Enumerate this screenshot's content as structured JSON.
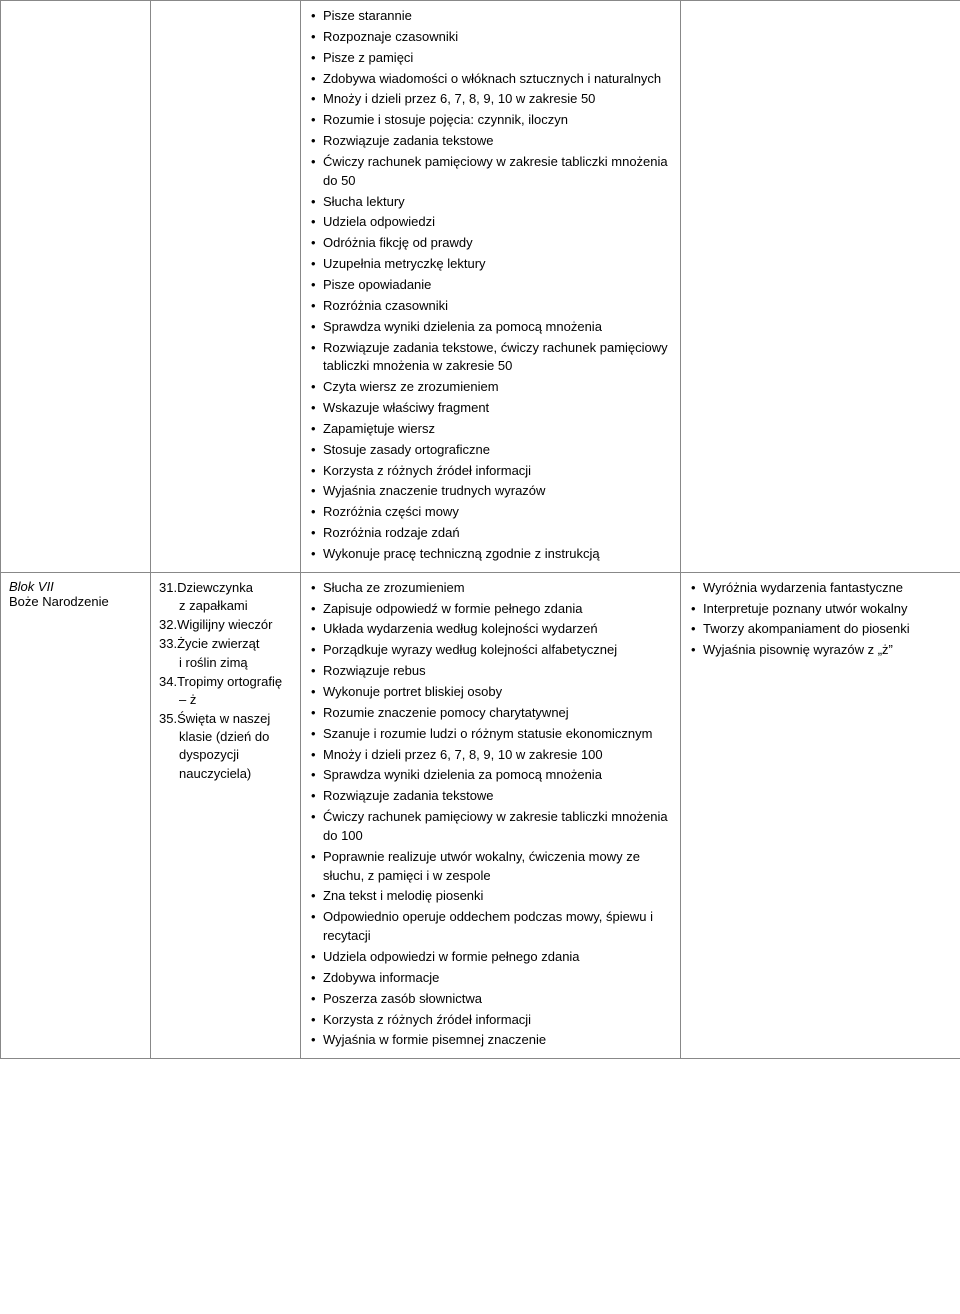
{
  "rows": [
    {
      "col1_lines": [],
      "col2_topics": [],
      "col3_bullets": [
        "Pisze starannie",
        "Rozpoznaje czasowniki",
        "Pisze z pamięci",
        "Zdobywa wiadomości o włóknach sztucznych i naturalnych",
        "Mnoży i dzieli przez 6, 7, 8, 9, 10 w zakresie 50",
        "Rozumie i stosuje pojęcia: czynnik, iloczyn",
        "Rozwiązuje zadania tekstowe",
        "Ćwiczy rachunek pamięciowy w zakresie tabliczki mnożenia do 50",
        "Słucha lektury",
        "Udziela odpowiedzi",
        "Odróżnia fikcję od prawdy",
        "Uzupełnia metryczkę lektury",
        "Pisze opowiadanie",
        "Rozróżnia czasowniki",
        "Sprawdza wyniki dzielenia za pomocą mnożenia",
        "Rozwiązuje zadania tekstowe, ćwiczy rachunek pamięciowy tabliczki mnożenia w zakresie 50",
        "Czyta wiersz ze zrozumieniem",
        "Wskazuje właściwy fragment",
        "Zapamiętuje wiersz",
        "Stosuje zasady ortograficzne",
        "Korzysta z różnych źródeł informacji",
        "Wyjaśnia znaczenie trudnych wyrazów",
        "Rozróżnia części mowy",
        "Rozróżnia rodzaje zdań",
        "Wykonuje pracę techniczną zgodnie z instrukcją"
      ],
      "col4_bullets": []
    },
    {
      "col1_lines": [
        {
          "text": "Blok VII",
          "italic": true
        },
        {
          "text": "Boże Narodzenie",
          "italic": false
        }
      ],
      "col2_topics": [
        {
          "num": "31.",
          "lines": [
            "Dziewczynka",
            "z zapałkami"
          ]
        },
        {
          "num": "32.",
          "lines": [
            "Wigilijny wieczór"
          ]
        },
        {
          "num": "33.",
          "lines": [
            "Życie zwierząt",
            "i roślin zimą"
          ]
        },
        {
          "num": "34.",
          "lines": [
            "Tropimy ortografię",
            "– ż"
          ]
        },
        {
          "num": "35.",
          "lines": [
            "Święta w naszej",
            "klasie (dzień do",
            "dyspozycji",
            "nauczyciela)"
          ]
        }
      ],
      "col3_bullets": [
        "Słucha ze zrozumieniem",
        "Zapisuje odpowiedź w formie pełnego zdania",
        "Układa wydarzenia według kolejności wydarzeń",
        "Porządkuje wyrazy według kolejności alfabetycznej",
        "Rozwiązuje rebus",
        "Wykonuje portret bliskiej osoby",
        "Rozumie znaczenie pomocy charytatywnej",
        "Szanuje i rozumie ludzi o różnym statusie ekonomicznym",
        "Mnoży i dzieli przez 6, 7, 8, 9, 10 w zakresie 100",
        "Sprawdza wyniki dzielenia za pomocą mnożenia",
        "Rozwiązuje zadania tekstowe",
        "Ćwiczy rachunek pamięciowy w zakresie tabliczki mnożenia do 100",
        "Poprawnie realizuje utwór wokalny, ćwiczenia mowy ze słuchu, z pamięci i w zespole",
        "Zna tekst i melodię piosenki",
        "Odpowiednio operuje oddechem podczas mowy, śpiewu i recytacji",
        "Udziela odpowiedzi w formie pełnego zdania",
        "Zdobywa informacje",
        "Poszerza zasób słownictwa",
        "Korzysta z różnych źródeł informacji",
        "Wyjaśnia w formie pisemnej znaczenie"
      ],
      "col4_bullets": [
        "Wyróżnia wydarzenia fantastyczne",
        " Interpretuje poznany utwór wokalny",
        "Tworzy akompaniament do piosenki",
        "Wyjaśnia pisownię wyrazów z „ż”"
      ]
    }
  ]
}
